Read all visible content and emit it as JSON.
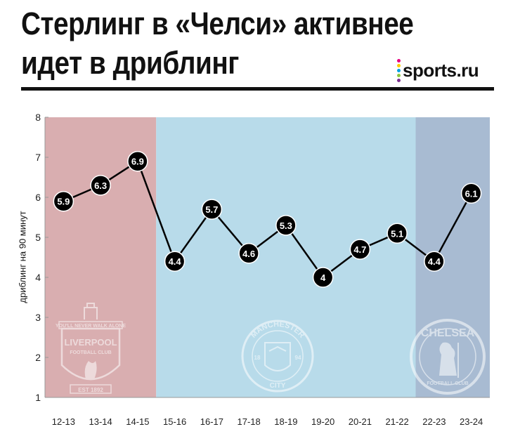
{
  "title_lines": [
    "Стерлинг в «Челси» активнее",
    "идет в дриблинг"
  ],
  "brand": {
    "name": "sports.ru",
    "dot_colors": [
      "#e6007e",
      "#ffcc00",
      "#00a0e3",
      "#8dc63f",
      "#7b2d8e"
    ]
  },
  "club_logos": {
    "liverpool": {
      "motto": "YOU'LL NEVER WALK ALONE",
      "name": "LIVERPOOL",
      "sub": "FOOTBALL CLUB",
      "est": "EST 1892"
    },
    "city": {
      "top": "MANCHESTER",
      "bottom": "CITY",
      "left": "18",
      "right": "94"
    },
    "chelsea": {
      "name": "CHELSEA",
      "sub": "FOOTBALL CLUB"
    }
  },
  "chart_data": {
    "type": "line",
    "title": "",
    "xlabel": "",
    "ylabel": "дриблинг на 90 минут",
    "ylim": [
      1,
      8
    ],
    "yticks": [
      1,
      2,
      3,
      4,
      5,
      6,
      7,
      8
    ],
    "categories": [
      "12-13",
      "13-14",
      "14-15",
      "15-16",
      "16-17",
      "17-18",
      "18-19",
      "19-20",
      "20-21",
      "21-22",
      "22-23",
      "23-24"
    ],
    "values": [
      5.9,
      6.3,
      6.9,
      4.4,
      5.7,
      4.6,
      5.3,
      4,
      4.7,
      5.1,
      4.4,
      6.1
    ],
    "labels": [
      "5.9",
      "6.3",
      "6.9",
      "4.4",
      "5.7",
      "4.6",
      "5.3",
      "4",
      "4.7",
      "5.1",
      "4.4",
      "6.1"
    ],
    "grid": false,
    "legend": "none",
    "bands": [
      {
        "club": "Liverpool",
        "from": "12-13",
        "to": "14-15",
        "color": "#d9aeb0"
      },
      {
        "club": "Manchester City",
        "from": "15-16",
        "to": "21-22",
        "color": "#b8dbea"
      },
      {
        "club": "Chelsea",
        "from": "22-23",
        "to": "23-24",
        "color": "#a8bbd2"
      }
    ],
    "line_color": "#000000",
    "marker_color": "#000000",
    "marker_text_color": "#ffffff"
  }
}
